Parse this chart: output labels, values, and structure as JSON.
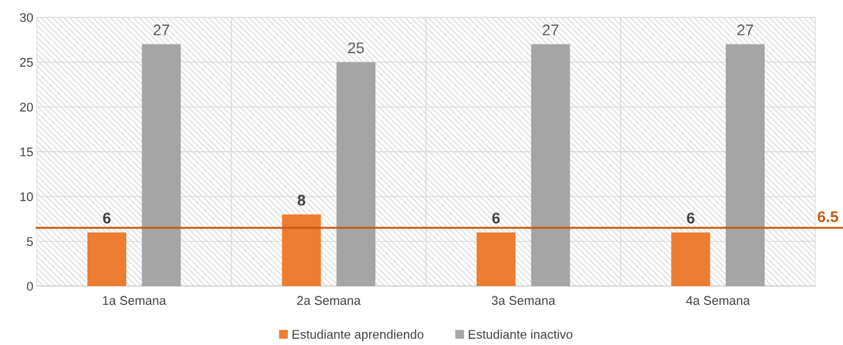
{
  "chart_data": {
    "type": "bar",
    "categories": [
      "1a Semana",
      "2a Semana",
      "3a Semana",
      "4a Semana"
    ],
    "series": [
      {
        "name": "Estudiante aprendiendo",
        "color": "#ed7d31",
        "values": [
          6,
          8,
          6,
          6
        ]
      },
      {
        "name": "Estudiante inactivo",
        "color": "#a5a5a5",
        "values": [
          27,
          25,
          27,
          27
        ]
      }
    ],
    "ylim": [
      0,
      30
    ],
    "yticks": [
      0,
      5,
      10,
      15,
      20,
      25,
      30
    ],
    "ref_lines": [
      {
        "axis": "y",
        "value": 6.5,
        "label": "6.5",
        "color": "#c55a11"
      }
    ],
    "data_labels": true,
    "grid": true,
    "legend": "bottom"
  }
}
